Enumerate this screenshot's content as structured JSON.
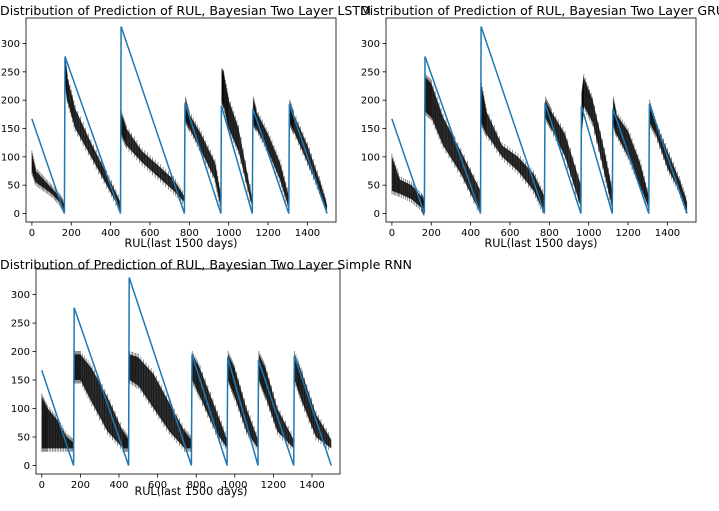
{
  "chart_data": [
    {
      "type": "line",
      "title": "Distribution of Prediction of RUL, Bayesian Two Layer LSTM",
      "xlabel": "RUL(last 1500 days)",
      "ylabel": "",
      "xlim": [
        -30,
        1545
      ],
      "ylim": [
        -15,
        345
      ],
      "xticks": [
        0,
        200,
        400,
        600,
        800,
        1000,
        1200,
        1400
      ],
      "yticks": [
        0,
        50,
        100,
        150,
        200,
        250,
        300
      ],
      "grid": false,
      "legend": "none",
      "colors": {
        "true_rul": "#1f77b4",
        "prediction": "#000000"
      },
      "true_rul": {
        "x": [
          0,
          165,
          168,
          450,
          453,
          775,
          778,
          960,
          963,
          1120,
          1123,
          1305,
          1308,
          1500
        ],
        "y": [
          167,
          0,
          277,
          0,
          330,
          0,
          195,
          0,
          190,
          0,
          185,
          0,
          193,
          0
        ]
      },
      "prediction_band": {
        "x": [
          0,
          20,
          60,
          100,
          140,
          165,
          170,
          180,
          220,
          300,
          380,
          450,
          455,
          480,
          560,
          640,
          720,
          775,
          780,
          800,
          860,
          930,
          960,
          965,
          975,
          1000,
          1050,
          1120,
          1125,
          1140,
          1200,
          1260,
          1305,
          1310,
          1330,
          1400,
          1460,
          1500
        ],
        "low": [
          75,
          55,
          45,
          35,
          20,
          5,
          230,
          200,
          150,
          100,
          50,
          5,
          140,
          120,
          90,
          65,
          40,
          20,
          165,
          150,
          110,
          60,
          10,
          200,
          190,
          150,
          110,
          10,
          160,
          150,
          110,
          60,
          10,
          160,
          145,
          90,
          40,
          5
        ],
        "high": [
          105,
          75,
          60,
          45,
          30,
          15,
          270,
          240,
          185,
          125,
          70,
          20,
          175,
          150,
          110,
          85,
          60,
          30,
          200,
          175,
          140,
          90,
          30,
          250,
          245,
          200,
          150,
          25,
          200,
          180,
          140,
          90,
          30,
          195,
          175,
          120,
          60,
          15
        ]
      }
    },
    {
      "type": "line",
      "title": "Distribution of Prediction of RUL, Bayesian Two Layer GRU",
      "xlabel": "RUL(last 1500 days)",
      "ylabel": "",
      "xlim": [
        -30,
        1545
      ],
      "ylim": [
        -15,
        345
      ],
      "xticks": [
        0,
        200,
        400,
        600,
        800,
        1000,
        1200,
        1400
      ],
      "yticks": [
        0,
        50,
        100,
        150,
        200,
        250,
        300
      ],
      "grid": false,
      "legend": "none",
      "colors": {
        "true_rul": "#1f77b4",
        "prediction": "#000000"
      },
      "true_rul": {
        "x": [
          0,
          165,
          168,
          450,
          453,
          775,
          778,
          960,
          963,
          1120,
          1123,
          1305,
          1308,
          1500
        ],
        "y": [
          167,
          0,
          277,
          0,
          330,
          0,
          195,
          0,
          190,
          0,
          185,
          0,
          193,
          0
        ]
      },
      "prediction_band": {
        "x": [
          0,
          40,
          100,
          150,
          165,
          170,
          200,
          260,
          350,
          450,
          455,
          480,
          560,
          640,
          720,
          775,
          780,
          810,
          880,
          960,
          965,
          975,
          1020,
          1080,
          1120,
          1125,
          1140,
          1200,
          1260,
          1305,
          1310,
          1340,
          1400,
          1460,
          1500
        ],
        "low": [
          40,
          35,
          25,
          10,
          0,
          180,
          170,
          120,
          70,
          0,
          160,
          140,
          100,
          75,
          40,
          0,
          170,
          150,
          100,
          10,
          150,
          190,
          160,
          70,
          10,
          160,
          140,
          100,
          50,
          10,
          160,
          140,
          80,
          40,
          0
        ],
        "high": [
          100,
          60,
          50,
          30,
          20,
          240,
          230,
          170,
          110,
          40,
          225,
          180,
          120,
          100,
          70,
          30,
          200,
          180,
          140,
          50,
          210,
          240,
          200,
          110,
          40,
          200,
          175,
          145,
          90,
          30,
          195,
          160,
          110,
          60,
          20
        ]
      }
    },
    {
      "type": "line",
      "title": "Distribution of Prediction of RUL, Bayesian Two Layer Simple RNN",
      "xlabel": "RUL(last 1500 days)",
      "ylabel": "",
      "xlim": [
        -30,
        1545
      ],
      "ylim": [
        -15,
        345
      ],
      "xticks": [
        0,
        200,
        400,
        600,
        800,
        1000,
        1200,
        1400
      ],
      "yticks": [
        0,
        50,
        100,
        150,
        200,
        250,
        300
      ],
      "grid": false,
      "legend": "none",
      "colors": {
        "true_rul": "#1f77b4",
        "prediction": "#000000"
      },
      "true_rul": {
        "x": [
          0,
          165,
          168,
          450,
          453,
          775,
          778,
          960,
          963,
          1120,
          1123,
          1305,
          1308,
          1500
        ],
        "y": [
          167,
          0,
          277,
          0,
          330,
          0,
          195,
          0,
          190,
          0,
          185,
          0,
          193,
          0
        ]
      },
      "prediction_band": {
        "x": [
          0,
          30,
          80,
          130,
          165,
          170,
          200,
          260,
          340,
          420,
          450,
          455,
          500,
          580,
          660,
          740,
          775,
          780,
          820,
          900,
          960,
          965,
          1000,
          1060,
          1120,
          1125,
          1160,
          1220,
          1305,
          1310,
          1350,
          1420,
          1500
        ],
        "low": [
          30,
          30,
          30,
          30,
          30,
          150,
          150,
          110,
          60,
          30,
          30,
          150,
          140,
          100,
          60,
          30,
          30,
          150,
          120,
          60,
          30,
          150,
          120,
          60,
          30,
          150,
          120,
          60,
          30,
          150,
          110,
          50,
          30
        ],
        "high": [
          120,
          100,
          80,
          50,
          40,
          195,
          195,
          170,
          120,
          60,
          45,
          195,
          190,
          160,
          110,
          60,
          45,
          195,
          170,
          100,
          45,
          195,
          170,
          100,
          45,
          195,
          170,
          100,
          45,
          195,
          160,
          90,
          45
        ]
      }
    }
  ]
}
